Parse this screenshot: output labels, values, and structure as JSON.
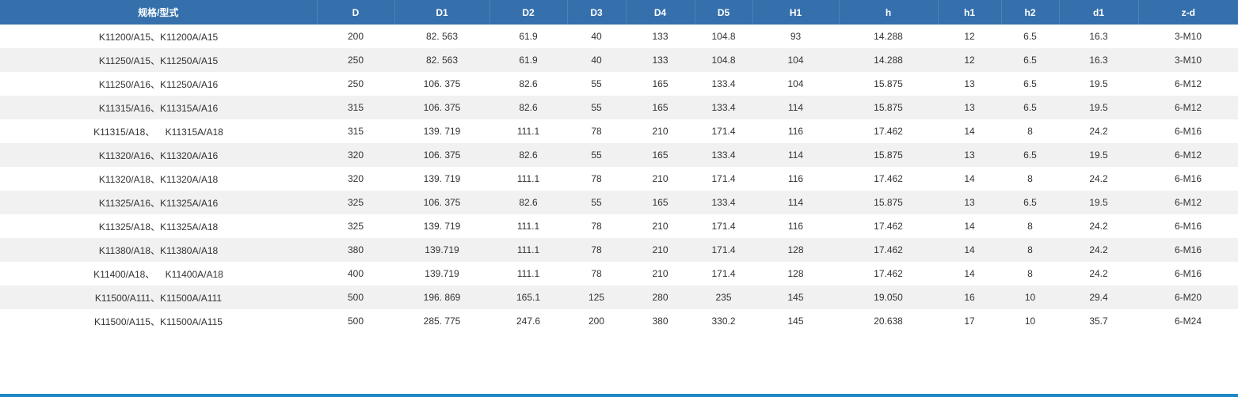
{
  "table": {
    "headers": [
      "规格/型式",
      "D",
      "D1",
      "D2",
      "D3",
      "D4",
      "D5",
      "H1",
      "h",
      "h1",
      "h2",
      "d1",
      "z-d"
    ],
    "rows": [
      [
        "K11200/A15、K11200A/A15",
        "200",
        "82. 563",
        "61.9",
        "40",
        "133",
        "104.8",
        "93",
        "14.288",
        "12",
        "6.5",
        "16.3",
        "3-M10"
      ],
      [
        "K11250/A15、K11250A/A15",
        "250",
        "82. 563",
        "61.9",
        "40",
        "133",
        "104.8",
        "104",
        "14.288",
        "12",
        "6.5",
        "16.3",
        "3-M10"
      ],
      [
        "K11250/A16、K11250A/A16",
        "250",
        "106. 375",
        "82.6",
        "55",
        "165",
        "133.4",
        "104",
        "15.875",
        "13",
        "6.5",
        "19.5",
        "6-M12"
      ],
      [
        "K11315/A16、K11315A/A16",
        "315",
        "106. 375",
        "82.6",
        "55",
        "165",
        "133.4",
        "114",
        "15.875",
        "13",
        "6.5",
        "19.5",
        "6-M12"
      ],
      [
        "K11315/A18、    K11315A/A18",
        "315",
        "139. 719",
        "111.1",
        "78",
        "210",
        "171.4",
        "116",
        "17.462",
        "14",
        "8",
        "24.2",
        "6-M16"
      ],
      [
        "K11320/A16、K11320A/A16",
        "320",
        "106. 375",
        "82.6",
        "55",
        "165",
        "133.4",
        "114",
        "15.875",
        "13",
        "6.5",
        "19.5",
        "6-M12"
      ],
      [
        "K11320/A18、K11320A/A18",
        "320",
        "139. 719",
        "111.1",
        "78",
        "210",
        "171.4",
        "116",
        "17.462",
        "14",
        "8",
        "24.2",
        "6-M16"
      ],
      [
        "K11325/A16、K11325A/A16",
        "325",
        "106. 375",
        "82.6",
        "55",
        "165",
        "133.4",
        "114",
        "15.875",
        "13",
        "6.5",
        "19.5",
        "6-M12"
      ],
      [
        "K11325/A18、K11325A/A18",
        "325",
        "139. 719",
        "111.1",
        "78",
        "210",
        "171.4",
        "116",
        "17.462",
        "14",
        "8",
        "24.2",
        "6-M16"
      ],
      [
        "K11380/A18、K11380A/A18",
        "380",
        "139.719",
        "111.1",
        "78",
        "210",
        "171.4",
        "128",
        "17.462",
        "14",
        "8",
        "24.2",
        "6-M16"
      ],
      [
        "K11400/A18、    K11400A/A18",
        "400",
        "139.719",
        "111.1",
        "78",
        "210",
        "171.4",
        "128",
        "17.462",
        "14",
        "8",
        "24.2",
        "6-M16"
      ],
      [
        "K11500/A111、K11500A/A111",
        "500",
        "196. 869",
        "165.1",
        "125",
        "280",
        "235",
        "145",
        "19.050",
        "16",
        "10",
        "29.4",
        "6-M20"
      ],
      [
        "K11500/A115、K11500A/A115",
        "500",
        "285. 775",
        "247.6",
        "200",
        "380",
        "330.2",
        "145",
        "20.638",
        "17",
        "10",
        "35.7",
        "6-M24"
      ]
    ]
  },
  "colors": {
    "header_bg": "#3570ac",
    "header_text": "#ffffff",
    "row_alt_bg": "#f1f1f1",
    "bottom_bar": "#1e88c9"
  }
}
